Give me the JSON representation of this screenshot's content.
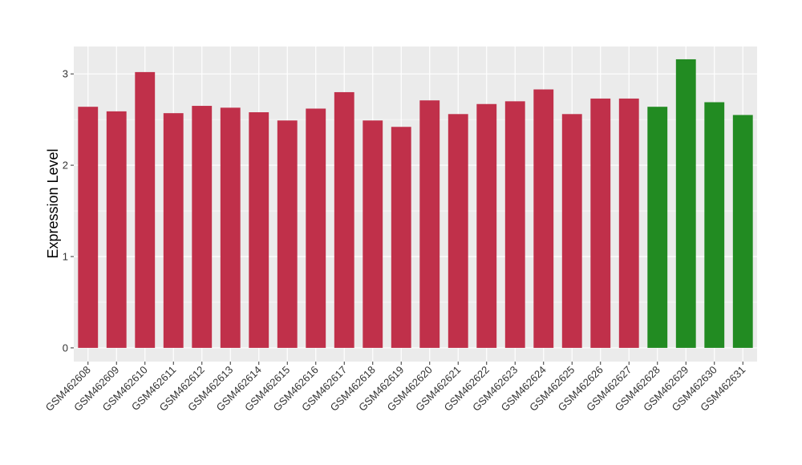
{
  "chart_data": {
    "type": "bar",
    "title": "",
    "xlabel": "",
    "ylabel": "Expression Level",
    "ylim": [
      -0.15,
      3.3
    ],
    "yticks": [
      0,
      1,
      2,
      3
    ],
    "grid": true,
    "legend": "none",
    "categories": [
      "GSM462608",
      "GSM462609",
      "GSM462610",
      "GSM462611",
      "GSM462612",
      "GSM462613",
      "GSM462614",
      "GSM462615",
      "GSM462616",
      "GSM462617",
      "GSM462618",
      "GSM462619",
      "GSM462620",
      "GSM462621",
      "GSM462622",
      "GSM462623",
      "GSM462624",
      "GSM462625",
      "GSM462626",
      "GSM462627",
      "GSM462628",
      "GSM462629",
      "GSM462630",
      "GSM462631"
    ],
    "values": [
      2.64,
      2.59,
      3.02,
      2.57,
      2.65,
      2.63,
      2.58,
      2.49,
      2.62,
      2.8,
      2.49,
      2.42,
      2.71,
      2.56,
      2.67,
      2.7,
      2.83,
      2.56,
      2.73,
      2.73,
      2.64,
      3.16,
      2.69,
      2.55
    ],
    "groups": [
      "red",
      "red",
      "red",
      "red",
      "red",
      "red",
      "red",
      "red",
      "red",
      "red",
      "red",
      "red",
      "red",
      "red",
      "red",
      "red",
      "red",
      "red",
      "red",
      "red",
      "green",
      "green",
      "green",
      "green"
    ],
    "colors": {
      "red": "#c0304a",
      "green": "#228b22",
      "panel": "#ebebeb",
      "grid": "#ffffff"
    }
  }
}
